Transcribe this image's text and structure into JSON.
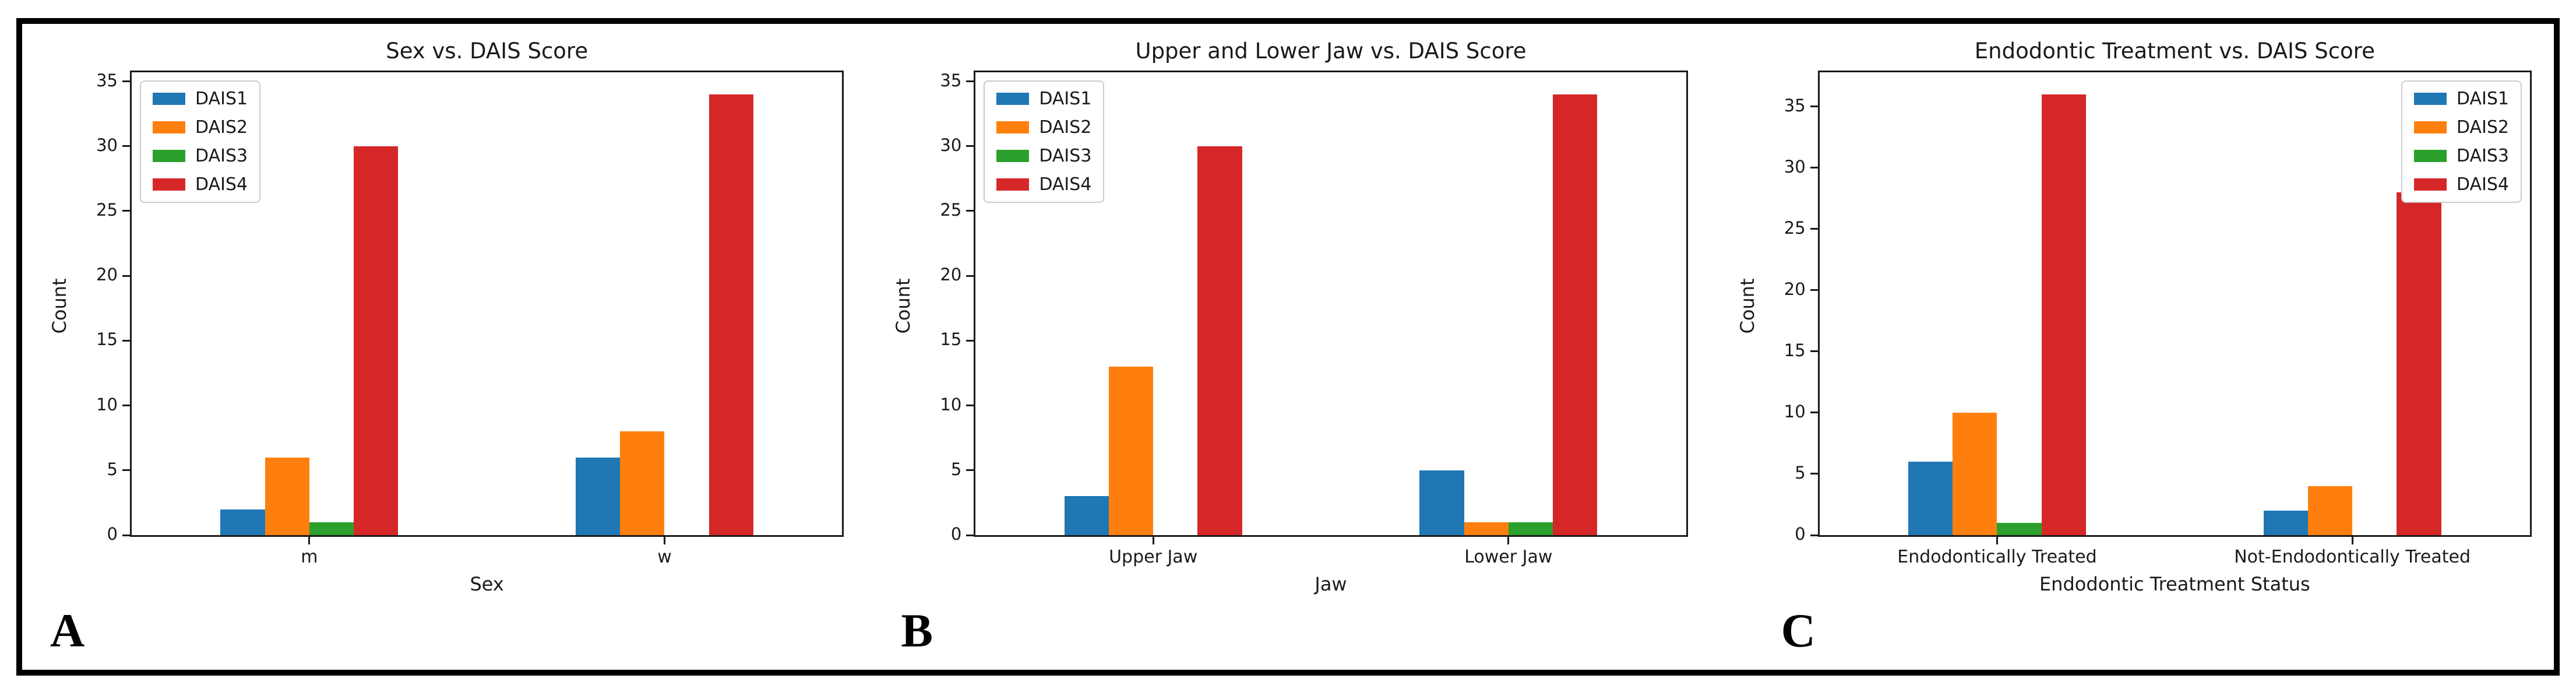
{
  "figure_labels": {
    "panel_a": "A",
    "panel_b": "B",
    "panel_c": "C"
  },
  "colors": {
    "DAIS1": "#1f77b4",
    "DAIS2": "#ff7f0e",
    "DAIS3": "#2ca02c",
    "DAIS4": "#d62728"
  },
  "chart_data": [
    {
      "type": "bar",
      "panel_label": "A",
      "title": "Sex vs. DAIS Score",
      "xlabel": "Sex",
      "ylabel": "Count",
      "categories": [
        "m",
        "w"
      ],
      "series": [
        {
          "name": "DAIS1",
          "color": "#1f77b4",
          "values": [
            2,
            6
          ]
        },
        {
          "name": "DAIS2",
          "color": "#ff7f0e",
          "values": [
            6,
            8
          ]
        },
        {
          "name": "DAIS3",
          "color": "#2ca02c",
          "values": [
            1,
            0
          ]
        },
        {
          "name": "DAIS4",
          "color": "#d62728",
          "values": [
            30,
            34
          ]
        }
      ],
      "yticks": [
        0,
        5,
        10,
        15,
        20,
        25,
        30,
        35
      ],
      "ylim": [
        0,
        35.7
      ],
      "grid": false,
      "legend_position": "upper-left",
      "legend_entries": [
        "DAIS1",
        "DAIS2",
        "DAIS3",
        "DAIS4"
      ]
    },
    {
      "type": "bar",
      "panel_label": "B",
      "title": "Upper and Lower Jaw vs. DAIS Score",
      "xlabel": "Jaw",
      "ylabel": "Count",
      "categories": [
        "Upper Jaw",
        "Lower Jaw"
      ],
      "series": [
        {
          "name": "DAIS1",
          "color": "#1f77b4",
          "values": [
            3,
            5
          ]
        },
        {
          "name": "DAIS2",
          "color": "#ff7f0e",
          "values": [
            13,
            1
          ]
        },
        {
          "name": "DAIS3",
          "color": "#2ca02c",
          "values": [
            0,
            1
          ]
        },
        {
          "name": "DAIS4",
          "color": "#d62728",
          "values": [
            30,
            34
          ]
        }
      ],
      "yticks": [
        0,
        5,
        10,
        15,
        20,
        25,
        30,
        35
      ],
      "ylim": [
        0,
        35.7
      ],
      "grid": false,
      "legend_position": "upper-left",
      "legend_entries": [
        "DAIS1",
        "DAIS2",
        "DAIS3",
        "DAIS4"
      ]
    },
    {
      "type": "bar",
      "panel_label": "C",
      "title": "Endodontic Treatment vs. DAIS Score",
      "xlabel": "Endodontic Treatment Status",
      "ylabel": "Count",
      "categories": [
        "Endodontically Treated",
        "Not-Endodontically Treated"
      ],
      "series": [
        {
          "name": "DAIS1",
          "color": "#1f77b4",
          "values": [
            6,
            2
          ]
        },
        {
          "name": "DAIS2",
          "color": "#ff7f0e",
          "values": [
            10,
            4
          ]
        },
        {
          "name": "DAIS3",
          "color": "#2ca02c",
          "values": [
            1,
            0
          ]
        },
        {
          "name": "DAIS4",
          "color": "#d62728",
          "values": [
            36,
            28
          ]
        }
      ],
      "yticks": [
        0,
        5,
        10,
        15,
        20,
        25,
        30,
        35
      ],
      "ylim": [
        0,
        37.8
      ],
      "grid": false,
      "legend_position": "upper-right",
      "legend_entries": [
        "DAIS1",
        "DAIS2",
        "DAIS3",
        "DAIS4"
      ]
    }
  ]
}
